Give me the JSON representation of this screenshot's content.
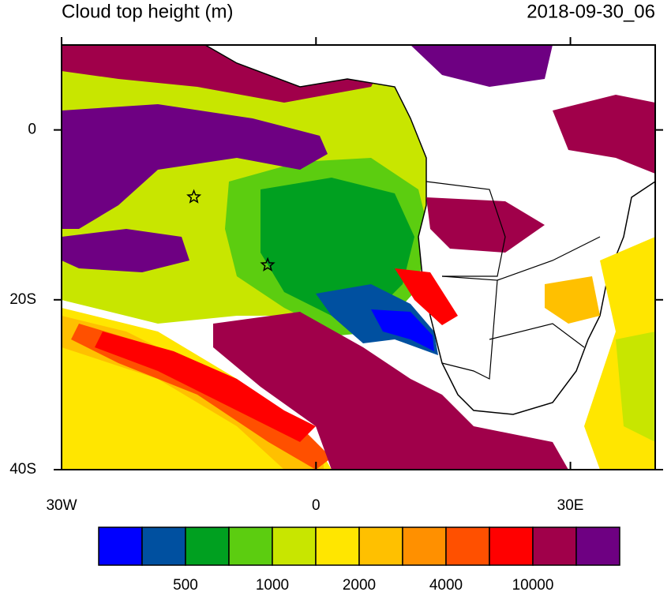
{
  "chart_data": {
    "type": "map",
    "title": "Cloud top height (m)",
    "subtitle": "2018-09-30_06",
    "xlim": [
      -30,
      40
    ],
    "ylim": [
      -40,
      10
    ],
    "xticks": [
      {
        "value": -30,
        "label": "30W"
      },
      0,
      {
        "value": 30,
        "label": "30E"
      }
    ],
    "yticks": [
      0,
      {
        "value": -20,
        "label": "20S"
      },
      {
        "value": -40,
        "label": "40S"
      }
    ],
    "markers": [
      {
        "lon": -14.4,
        "lat": -7.9
      },
      {
        "lon": -5.7,
        "lat": -15.9
      }
    ],
    "colorbar": {
      "colors": [
        "#0000ff",
        "#0050a0",
        "#00a020",
        "#5ccd10",
        "#c8e600",
        "#ffe600",
        "#ffc000",
        "#ff9000",
        "#ff5000",
        "#ff0000",
        "#a0004a",
        "#6e0082"
      ],
      "levels": [
        500,
        1000,
        2000,
        4000,
        10000
      ]
    }
  }
}
